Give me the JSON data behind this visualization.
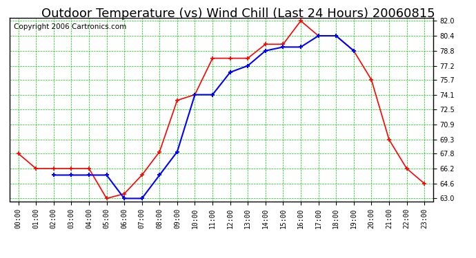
{
  "title": "Outdoor Temperature (vs) Wind Chill (Last 24 Hours) 20060815",
  "copyright": "Copyright 2006 Cartronics.com",
  "hours": [
    "00:00",
    "01:00",
    "02:00",
    "03:00",
    "04:00",
    "05:00",
    "06:00",
    "07:00",
    "08:00",
    "09:00",
    "10:00",
    "11:00",
    "12:00",
    "13:00",
    "14:00",
    "15:00",
    "16:00",
    "17:00",
    "18:00",
    "19:00",
    "20:00",
    "21:00",
    "22:00",
    "23:00"
  ],
  "temp": [
    67.8,
    66.2,
    66.2,
    66.2,
    66.2,
    63.0,
    63.5,
    65.5,
    68.0,
    73.5,
    74.1,
    78.0,
    78.0,
    78.0,
    79.5,
    79.5,
    82.0,
    80.4,
    80.4,
    78.8,
    75.7,
    69.3,
    66.2,
    64.6
  ],
  "windchill": [
    null,
    null,
    65.5,
    65.5,
    65.5,
    65.5,
    63.0,
    63.0,
    65.5,
    68.0,
    74.1,
    74.1,
    76.5,
    77.2,
    78.8,
    79.2,
    79.2,
    80.4,
    80.4,
    78.8,
    null,
    null,
    null,
    null
  ],
  "temp_color": "#ff0000",
  "windchill_color": "#0000ff",
  "grid_color": "#00cc00",
  "bg_color": "#ffffff",
  "plot_bg": "#ffffff",
  "ylim_min": 63.0,
  "ylim_max": 82.0,
  "yticks": [
    63.0,
    64.6,
    66.2,
    67.8,
    69.3,
    70.9,
    72.5,
    74.1,
    75.7,
    77.2,
    78.8,
    80.4,
    82.0
  ],
  "title_fontsize": 13,
  "copyright_fontsize": 7.5,
  "axis_label_fontsize": 8,
  "tick_label_fontsize": 7
}
